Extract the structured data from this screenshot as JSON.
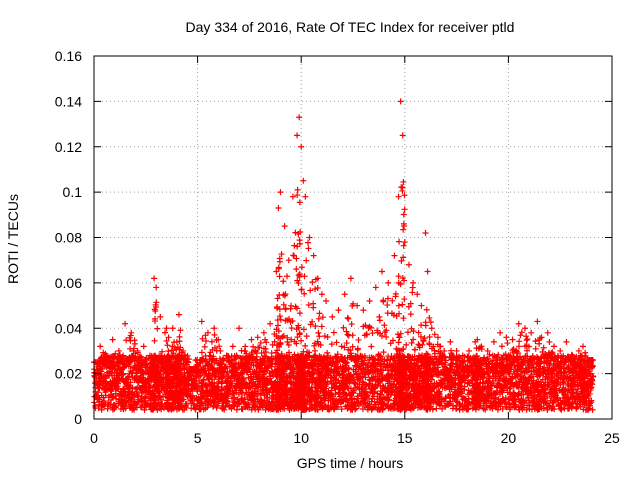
{
  "chart_data": {
    "type": "scatter",
    "title": "Day 334 of 2016, Rate Of TEC Index for receiver ptld",
    "xlabel": "GPS time / hours",
    "ylabel": "ROTI / TECUs",
    "xlim": [
      0,
      25
    ],
    "ylim": [
      0,
      0.16
    ],
    "xticks": [
      0,
      5,
      10,
      15,
      20,
      25
    ],
    "yticks": [
      0,
      0.02,
      0.04,
      0.06,
      0.08,
      0.1,
      0.12,
      0.14,
      0.16
    ],
    "xtick_labels": [
      "0",
      "5",
      "10",
      "15",
      "20",
      "25"
    ],
    "ytick_labels": [
      "0",
      "0.02",
      "0.04",
      "0.06",
      "0.08",
      "0.1",
      "0.12",
      "0.14",
      "0.16"
    ],
    "grid": true,
    "marker": "+",
    "color": "#ff0000",
    "series": [
      {
        "name": "ROTI",
        "x": [
          0.0,
          0.3,
          0.6,
          0.9,
          1.2,
          1.5,
          1.8,
          2.1,
          2.4,
          2.7,
          2.9,
          3.0,
          3.2,
          3.5,
          3.6,
          3.8,
          4.0,
          4.1,
          4.3,
          4.6,
          4.9,
          5.2,
          5.5,
          5.8,
          6.1,
          6.4,
          6.7,
          7.0,
          7.3,
          7.6,
          7.9,
          8.2,
          8.5,
          8.8,
          8.9,
          9.0,
          9.2,
          9.4,
          9.6,
          9.8,
          9.9,
          10.0,
          10.1,
          10.2,
          10.4,
          10.6,
          10.8,
          11.0,
          11.2,
          11.5,
          11.8,
          12.1,
          12.4,
          12.7,
          13.0,
          13.3,
          13.6,
          13.9,
          14.2,
          14.5,
          14.7,
          14.8,
          14.9,
          15.0,
          15.2,
          15.4,
          15.6,
          15.8,
          16.0,
          16.1,
          16.3,
          16.6,
          16.9,
          17.2,
          17.5,
          17.8,
          18.1,
          18.4,
          18.5,
          18.7,
          19.0,
          19.3,
          19.6,
          19.9,
          20.2,
          20.5,
          20.8,
          21.1,
          21.4,
          21.6,
          21.9,
          22.2,
          22.5,
          22.8,
          23.1,
          23.4,
          23.6,
          23.8
        ],
        "values": [
          0.025,
          0.032,
          0.028,
          0.035,
          0.03,
          0.042,
          0.038,
          0.03,
          0.032,
          0.028,
          0.062,
          0.058,
          0.045,
          0.04,
          0.036,
          0.04,
          0.034,
          0.046,
          0.03,
          0.022,
          0.026,
          0.043,
          0.038,
          0.04,
          0.03,
          0.028,
          0.032,
          0.04,
          0.03,
          0.035,
          0.036,
          0.038,
          0.042,
          0.065,
          0.093,
          0.1,
          0.085,
          0.07,
          0.098,
          0.125,
          0.133,
          0.12,
          0.105,
          0.098,
          0.08,
          0.072,
          0.062,
          0.055,
          0.052,
          0.045,
          0.048,
          0.055,
          0.062,
          0.05,
          0.048,
          0.052,
          0.058,
          0.065,
          0.06,
          0.072,
          0.098,
          0.14,
          0.125,
          0.078,
          0.068,
          0.06,
          0.055,
          0.05,
          0.082,
          0.065,
          0.04,
          0.036,
          0.03,
          0.034,
          0.03,
          0.028,
          0.03,
          0.034,
          0.035,
          0.032,
          0.03,
          0.034,
          0.038,
          0.036,
          0.035,
          0.042,
          0.04,
          0.038,
          0.043,
          0.036,
          0.038,
          0.032,
          0.03,
          0.034,
          0.028,
          0.03,
          0.032,
          0.026
        ]
      }
    ],
    "notes": "Dense cloud of '+' markers; baseline roughly 0.005-0.03 across all hours with peaks near 9-11 h (up to ~0.133) and 14.5-15.2 h (up to ~0.140)."
  }
}
